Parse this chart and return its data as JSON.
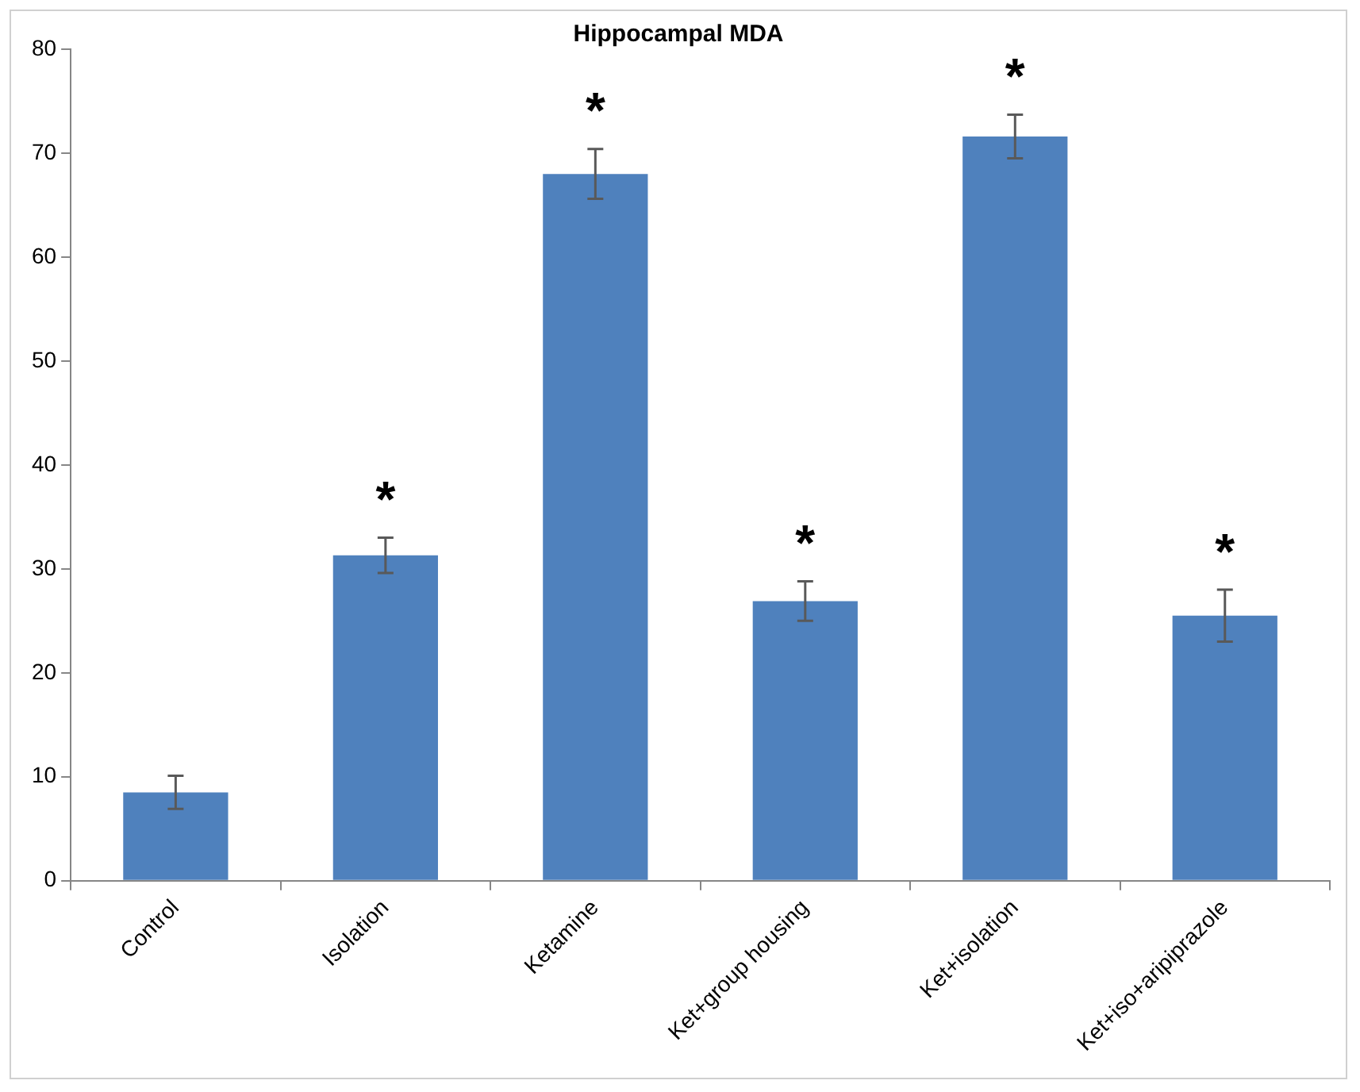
{
  "chart_data": {
    "type": "bar",
    "title": "Hippocampal MDA",
    "categories": [
      "Control",
      "Isolation",
      "Ketamine",
      "Ket+group housing",
      "Ket+isolation",
      "Ket+iso+aripiprazole"
    ],
    "values": [
      8.5,
      31.3,
      68.0,
      26.9,
      71.6,
      25.5
    ],
    "errors": [
      1.6,
      1.7,
      2.4,
      1.9,
      2.1,
      2.5
    ],
    "color": "#4f81bd",
    "ylim": [
      0,
      80
    ],
    "yticks": [
      0,
      10,
      20,
      30,
      40,
      50,
      60,
      70,
      80
    ],
    "grid": false,
    "value_labels": [
      null,
      "*",
      "*",
      "*",
      "*",
      "*"
    ]
  }
}
